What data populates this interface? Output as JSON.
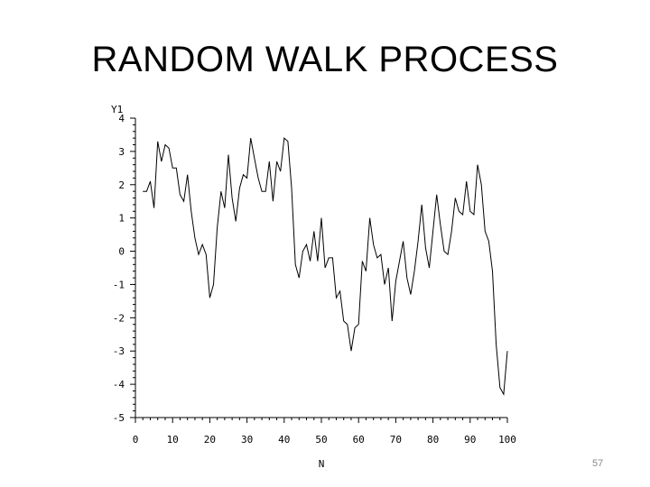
{
  "slide": {
    "title": "RANDOM WALK PROCESS",
    "page_number": "57"
  },
  "chart_data": {
    "type": "line",
    "title": "",
    "xlabel": "N",
    "ylabel": "Y1",
    "xlim": [
      0,
      100
    ],
    "ylim": [
      -5,
      4
    ],
    "x_ticks": [
      0,
      10,
      20,
      30,
      40,
      50,
      60,
      70,
      80,
      90,
      100
    ],
    "y_ticks": [
      4,
      3,
      2,
      1,
      0,
      -1,
      -2,
      -3,
      -4,
      -5
    ],
    "grid": false,
    "series": [
      {
        "name": "",
        "color": "#000000",
        "x": [
          2,
          3,
          4,
          5,
          6,
          7,
          8,
          9,
          10,
          11,
          12,
          13,
          14,
          15,
          16,
          17,
          18,
          19,
          20,
          21,
          22,
          23,
          24,
          25,
          26,
          27,
          28,
          29,
          30,
          31,
          32,
          33,
          34,
          35,
          36,
          37,
          38,
          39,
          40,
          41,
          42,
          43,
          44,
          45,
          46,
          47,
          48,
          49,
          50,
          51,
          52,
          53,
          54,
          55,
          56,
          57,
          58,
          59,
          60,
          61,
          62,
          63,
          64,
          65,
          66,
          67,
          68,
          69,
          70,
          71,
          72,
          73,
          74,
          75,
          76,
          77,
          78,
          79,
          80,
          81,
          82,
          83,
          84,
          85,
          86,
          87,
          88,
          89,
          90,
          91,
          92,
          93,
          94,
          95,
          96,
          97,
          98,
          99,
          100
        ],
        "values": [
          1.8,
          1.8,
          2.1,
          1.3,
          3.3,
          2.7,
          3.2,
          3.1,
          2.5,
          2.5,
          1.7,
          1.5,
          2.3,
          1.2,
          0.4,
          -0.1,
          0.2,
          -0.1,
          -1.4,
          -1.0,
          0.7,
          1.8,
          1.3,
          2.9,
          1.6,
          0.9,
          1.9,
          2.3,
          2.2,
          3.4,
          2.8,
          2.2,
          1.8,
          1.8,
          2.7,
          1.5,
          2.7,
          2.4,
          3.4,
          3.3,
          1.9,
          -0.4,
          -0.8,
          0.0,
          0.2,
          -0.3,
          0.6,
          -0.3,
          1.0,
          -0.5,
          -0.2,
          -0.2,
          -1.4,
          -1.2,
          -2.1,
          -2.2,
          -3.0,
          -2.3,
          -2.2,
          -0.3,
          -0.6,
          1.0,
          0.2,
          -0.2,
          -0.1,
          -1.0,
          -0.5,
          -2.1,
          -0.9,
          -0.3,
          0.3,
          -0.8,
          -1.3,
          -0.6,
          0.3,
          1.4,
          0.1,
          -0.5,
          0.6,
          1.7,
          0.8,
          0.0,
          -0.1,
          0.6,
          1.6,
          1.2,
          1.1,
          2.1,
          1.2,
          1.1,
          2.6,
          2.0,
          0.6,
          0.3,
          -0.6,
          -2.8,
          -4.1,
          -4.3,
          -3.0
        ]
      }
    ]
  }
}
